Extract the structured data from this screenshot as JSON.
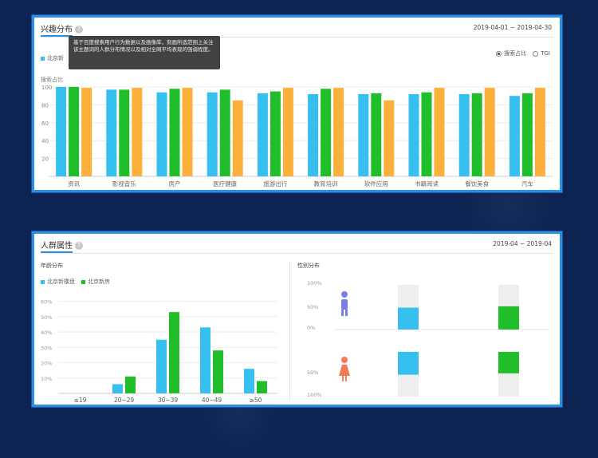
{
  "colors": {
    "blue": "#35c0f0",
    "green": "#1fbe2a",
    "orange": "#fbb03b",
    "accent": "#2b8fe6"
  },
  "panel1": {
    "title": "兴趣分布",
    "date_range": "2019-04-01 ~ 2019-04-30",
    "tooltip": "基于百度搜索用户行为数据以及画像库，刻画所选范围上关注该主题词的人群分布情况以及相对全网平均表现的强弱程度。",
    "legend": [
      "北京新"
    ],
    "ylabel": "搜索占比",
    "radio": [
      {
        "label": "搜索占比",
        "selected": true
      },
      {
        "label": "TGI",
        "selected": false
      }
    ]
  },
  "panel2": {
    "title": "人群属性",
    "date_range": "2019-04 ~ 2019-04",
    "age_title": "年龄分布",
    "age_legend": [
      "北京新楼盘",
      "北京新房"
    ],
    "gender_title": "性别分布",
    "gender_ticks": [
      "100%",
      "50%",
      "0%",
      "50%",
      "100%"
    ]
  },
  "chart_data": [
    {
      "type": "bar",
      "title": "兴趣分布",
      "ylabel": "搜索占比",
      "categories": [
        "资讯",
        "影视音乐",
        "房产",
        "医疗健康",
        "旅游出行",
        "教育培训",
        "软件应用",
        "书籍阅读",
        "餐饮美食",
        "汽车"
      ],
      "series": [
        {
          "color": "#35c0f0",
          "values": [
            100,
            97,
            94,
            94,
            93,
            92,
            92,
            92,
            92,
            90
          ]
        },
        {
          "color": "#1fbe2a",
          "values": [
            100,
            97,
            98,
            97,
            95,
            98,
            93,
            94,
            93,
            93
          ]
        },
        {
          "color": "#fbb03b",
          "values": [
            99,
            99,
            99,
            85,
            99,
            99,
            85,
            99,
            99,
            99
          ]
        }
      ],
      "yticks": [
        "100",
        "80",
        "60",
        "40",
        "20"
      ],
      "ylim": [
        0,
        100
      ]
    },
    {
      "type": "bar",
      "title": "年龄分布",
      "categories": [
        "≤19",
        "20~29",
        "30~39",
        "40~49",
        "≥50"
      ],
      "series": [
        {
          "name": "北京新楼盘",
          "color": "#35c0f0",
          "values": [
            0,
            6,
            35,
            43,
            16
          ]
        },
        {
          "name": "北京新房",
          "color": "#1fbe2a",
          "values": [
            0,
            11,
            53,
            28,
            8
          ]
        }
      ],
      "yticks": [
        "10%",
        "20%",
        "30%",
        "40%",
        "50%",
        "60%"
      ],
      "ylim": [
        0,
        60
      ]
    },
    {
      "type": "bar",
      "title": "性别分布",
      "categories": [
        "男",
        "女"
      ],
      "series": [
        {
          "name": "北京新楼盘",
          "color": "#35c0f0",
          "values": [
            49,
            51
          ]
        },
        {
          "name": "北京新房",
          "color": "#1fbe2a",
          "values": [
            52,
            48
          ]
        }
      ]
    }
  ]
}
